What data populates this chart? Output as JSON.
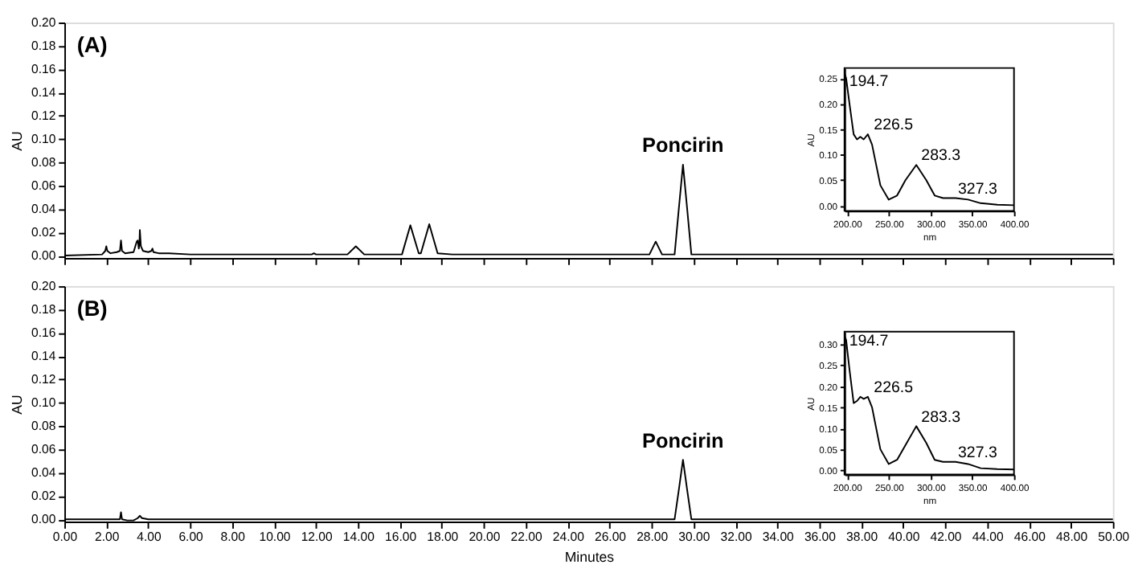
{
  "chart_data": [
    {
      "type": "line",
      "ylabel": "AU",
      "xlim": [
        0,
        50
      ],
      "ylim": [
        -0.002,
        0.2
      ],
      "tick_labels": "y",
      "grid": false,
      "xticks": [
        {
          "value": 0,
          "label": null
        },
        {
          "value": 2,
          "label": null
        },
        {
          "value": 4,
          "label": null
        },
        {
          "value": 6,
          "label": null
        },
        {
          "value": 8,
          "label": null
        },
        {
          "value": 10,
          "label": null
        },
        {
          "value": 12,
          "label": null
        },
        {
          "value": 14,
          "label": null
        },
        {
          "value": 16,
          "label": null
        },
        {
          "value": 18,
          "label": null
        },
        {
          "value": 20,
          "label": null
        },
        {
          "value": 22,
          "label": null
        },
        {
          "value": 24,
          "label": null
        },
        {
          "value": 26,
          "label": null
        },
        {
          "value": 28,
          "label": null
        },
        {
          "value": 30,
          "label": null
        },
        {
          "value": 32,
          "label": null
        },
        {
          "value": 34,
          "label": null
        },
        {
          "value": 36,
          "label": null
        },
        {
          "value": 38,
          "label": null
        },
        {
          "value": 40,
          "label": null
        },
        {
          "value": 42,
          "label": null
        },
        {
          "value": 44,
          "label": null
        },
        {
          "value": 46,
          "label": null
        },
        {
          "value": 48,
          "label": null
        },
        {
          "value": 50,
          "label": null
        }
      ],
      "yticks": [
        {
          "value": 0,
          "label": "0.00"
        },
        {
          "value": 0.02,
          "label": "0.02"
        },
        {
          "value": 0.04,
          "label": "0.04"
        },
        {
          "value": 0.06,
          "label": "0.06"
        },
        {
          "value": 0.08,
          "label": "0.08"
        },
        {
          "value": 0.1,
          "label": "0.10"
        },
        {
          "value": 0.12,
          "label": "0.12"
        },
        {
          "value": 0.14,
          "label": "0.14"
        },
        {
          "value": 0.16,
          "label": "0.16"
        },
        {
          "value": 0.18,
          "label": "0.18"
        },
        {
          "value": 0.2,
          "label": "0.20"
        }
      ],
      "annotations": [
        "(A)",
        {
          "text": "Poncirin",
          "x": 29.5,
          "y": 0.078
        }
      ],
      "series": [
        {
          "color": "#000000",
          "x": [
            0,
            1.8,
            1.95,
            2.0,
            2.05,
            2.2,
            2.5,
            2.65,
            2.7,
            2.75,
            2.9,
            3.3,
            3.45,
            3.5,
            3.55,
            3.58,
            3.6,
            3.65,
            3.75,
            4.0,
            4.15,
            4.2,
            4.25,
            4.5,
            5.0,
            6.0,
            8.0,
            10.0,
            11.8,
            11.9,
            12.0,
            13.5,
            13.9,
            14.3,
            15.0,
            16.1,
            16.5,
            16.9,
            17.0,
            17.4,
            17.8,
            18.5,
            22,
            27.9,
            28.2,
            28.5,
            29.1,
            29.3,
            29.5,
            29.7,
            29.9,
            32,
            40,
            50
          ],
          "values": [
            0,
            0.001,
            0.004,
            0.008,
            0.004,
            0.002,
            0.003,
            0.004,
            0.013,
            0.004,
            0.002,
            0.003,
            0.012,
            0.013,
            0.006,
            0.01,
            0.022,
            0.008,
            0.004,
            0.003,
            0.004,
            0.006,
            0.003,
            0.002,
            0.002,
            0.001,
            0.001,
            0.001,
            0.001,
            0.002,
            0.001,
            0.001,
            0.008,
            0.001,
            0.001,
            0.001,
            0.026,
            0.002,
            0.002,
            0.027,
            0.002,
            0.001,
            0.001,
            0.001,
            0.012,
            0.001,
            0.001,
            0.04,
            0.078,
            0.04,
            0.001,
            0.001,
            0.001,
            0.001
          ]
        }
      ]
    },
    {
      "type": "line",
      "xlabel": "nm",
      "ylabel": "AU",
      "xlim": [
        197,
        400
      ],
      "ylim": [
        -0.01,
        0.27
      ],
      "grid": false,
      "xticks": [
        {
          "value": 200,
          "label": "200.00"
        },
        {
          "value": 250,
          "label": "250.00"
        },
        {
          "value": 300,
          "label": "300.00"
        },
        {
          "value": 350,
          "label": "350.00"
        },
        {
          "value": 400,
          "label": "400.00"
        }
      ],
      "yticks": [
        {
          "value": 0,
          "label": "0.00"
        },
        {
          "value": 0.05,
          "label": "0.05"
        },
        {
          "value": 0.1,
          "label": "0.10"
        },
        {
          "value": 0.15,
          "label": "0.15"
        },
        {
          "value": 0.2,
          "label": "0.20"
        },
        {
          "value": 0.25,
          "label": "0.25"
        }
      ],
      "annotations": [
        {
          "text": "194.7",
          "x": 197,
          "y": 0.225
        },
        {
          "text": "226.5",
          "x": 226.5,
          "y": 0.14
        },
        {
          "text": "283.3",
          "x": 283.3,
          "y": 0.08
        },
        {
          "text": "327.3",
          "x": 327.3,
          "y": 0.015
        }
      ],
      "series": [
        {
          "color": "#000000",
          "x": [
            197,
            199,
            203,
            208,
            212,
            216,
            220,
            225,
            230,
            240,
            250,
            260,
            270,
            283,
            295,
            305,
            315,
            330,
            345,
            360,
            380,
            400
          ],
          "values": [
            0.26,
            0.25,
            0.2,
            0.14,
            0.13,
            0.135,
            0.13,
            0.14,
            0.12,
            0.04,
            0.012,
            0.02,
            0.05,
            0.08,
            0.05,
            0.02,
            0.015,
            0.015,
            0.012,
            0.005,
            0.002,
            0.001
          ]
        }
      ]
    },
    {
      "type": "line",
      "xlabel": "Minutes",
      "ylabel": "AU",
      "xlim": [
        0,
        50
      ],
      "ylim": [
        -0.002,
        0.2
      ],
      "grid": false,
      "xticks": [
        {
          "value": 0,
          "label": "0.00"
        },
        {
          "value": 2,
          "label": "2.00"
        },
        {
          "value": 4,
          "label": "4.00"
        },
        {
          "value": 6,
          "label": "6.00"
        },
        {
          "value": 8,
          "label": "8.00"
        },
        {
          "value": 10,
          "label": "10.00"
        },
        {
          "value": 12,
          "label": "12.00"
        },
        {
          "value": 14,
          "label": "14.00"
        },
        {
          "value": 16,
          "label": "16.00"
        },
        {
          "value": 18,
          "label": "18.00"
        },
        {
          "value": 20,
          "label": "20.00"
        },
        {
          "value": 22,
          "label": "22.00"
        },
        {
          "value": 24,
          "label": "24.00"
        },
        {
          "value": 26,
          "label": "26.00"
        },
        {
          "value": 28,
          "label": "28.00"
        },
        {
          "value": 30,
          "label": "30.00"
        },
        {
          "value": 32,
          "label": "32.00"
        },
        {
          "value": 34,
          "label": "34.00"
        },
        {
          "value": 36,
          "label": "36.00"
        },
        {
          "value": 38,
          "label": "38.00"
        },
        {
          "value": 40,
          "label": "40.00"
        },
        {
          "value": 42,
          "label": "42.00"
        },
        {
          "value": 44,
          "label": "44.00"
        },
        {
          "value": 46,
          "label": "46.00"
        },
        {
          "value": 48,
          "label": "48.00"
        },
        {
          "value": 50,
          "label": "50.00"
        }
      ],
      "yticks": [
        {
          "value": 0,
          "label": "0.00"
        },
        {
          "value": 0.02,
          "label": "0.02"
        },
        {
          "value": 0.04,
          "label": "0.04"
        },
        {
          "value": 0.06,
          "label": "0.06"
        },
        {
          "value": 0.08,
          "label": "0.08"
        },
        {
          "value": 0.1,
          "label": "0.10"
        },
        {
          "value": 0.12,
          "label": "0.12"
        },
        {
          "value": 0.14,
          "label": "0.14"
        },
        {
          "value": 0.16,
          "label": "0.16"
        },
        {
          "value": 0.18,
          "label": "0.18"
        },
        {
          "value": 0.2,
          "label": "0.20"
        }
      ],
      "annotations": [
        "(B)",
        {
          "text": "Poncirin",
          "x": 29.5,
          "y": 0.051
        }
      ],
      "series": [
        {
          "color": "#000000",
          "x": [
            0,
            2.65,
            2.7,
            2.75,
            3.0,
            3.3,
            3.5,
            3.6,
            3.7,
            4.0,
            16,
            29.1,
            29.3,
            29.5,
            29.7,
            29.9,
            50
          ],
          "values": [
            0,
            0,
            0.006,
            0,
            -0.001,
            -0.001,
            0.001,
            0.003,
            0.001,
            0,
            0,
            0,
            0.025,
            0.051,
            0.025,
            0,
            0
          ]
        }
      ]
    },
    {
      "type": "line",
      "xlabel": "nm",
      "ylabel": "AU",
      "xlim": [
        197,
        400
      ],
      "ylim": [
        -0.01,
        0.33
      ],
      "grid": false,
      "xticks": [
        {
          "value": 200,
          "label": "200.00"
        },
        {
          "value": 250,
          "label": "250.00"
        },
        {
          "value": 300,
          "label": "300.00"
        },
        {
          "value": 350,
          "label": "350.00"
        },
        {
          "value": 400,
          "label": "400.00"
        }
      ],
      "yticks": [
        {
          "value": 0,
          "label": "0.00"
        },
        {
          "value": 0.05,
          "label": "0.05"
        },
        {
          "value": 0.1,
          "label": "0.10"
        },
        {
          "value": 0.15,
          "label": "0.15"
        },
        {
          "value": 0.2,
          "label": "0.20"
        },
        {
          "value": 0.25,
          "label": "0.25"
        },
        {
          "value": 0.3,
          "label": "0.30"
        }
      ],
      "annotations": [
        {
          "text": "194.7",
          "x": 197,
          "y": 0.285
        },
        {
          "text": "226.5",
          "x": 226.5,
          "y": 0.175
        },
        {
          "text": "283.3",
          "x": 283.3,
          "y": 0.105
        },
        {
          "text": "327.3",
          "x": 327.3,
          "y": 0.02
        }
      ],
      "series": [
        {
          "color": "#000000",
          "x": [
            197,
            199,
            203,
            208,
            212,
            216,
            220,
            225,
            230,
            240,
            250,
            260,
            270,
            283,
            295,
            305,
            315,
            330,
            345,
            360,
            380,
            400
          ],
          "values": [
            0.32,
            0.31,
            0.24,
            0.16,
            0.165,
            0.175,
            0.17,
            0.175,
            0.15,
            0.05,
            0.015,
            0.025,
            0.06,
            0.105,
            0.065,
            0.025,
            0.02,
            0.02,
            0.015,
            0.005,
            0.003,
            0.002
          ]
        }
      ]
    }
  ]
}
